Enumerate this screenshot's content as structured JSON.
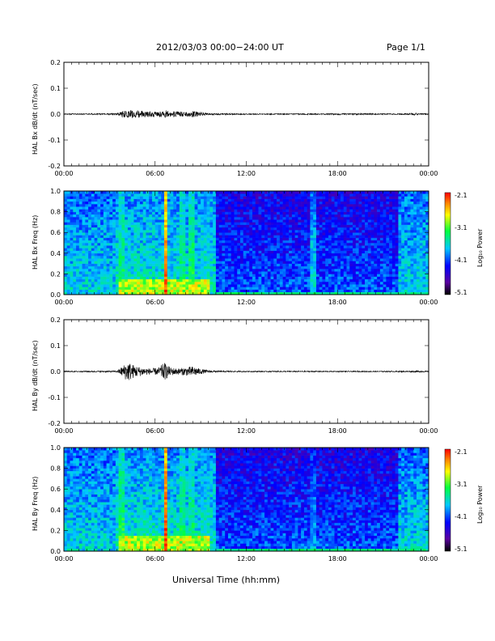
{
  "header": {
    "title": "2012/03/03  00:00−24:00 UT",
    "page": "Page 1/1"
  },
  "footer": {
    "xlabel": "Universal Time (hh:mm)"
  },
  "chart_data": [
    {
      "id": "bx-dbdt",
      "type": "line",
      "ylabel": "HAL Bx dB/dt (nT/sec)",
      "xlim": [
        0,
        24
      ],
      "ylim": [
        -0.2,
        0.2
      ],
      "xticks": [
        "00:00",
        "06:00",
        "12:00",
        "18:00",
        "00:00"
      ],
      "yticks": [
        "-0.2",
        "-0.1",
        "0.0",
        "0.1",
        "0.2"
      ],
      "series": [
        {
          "x": [
            0,
            3.5,
            3.8,
            4.2,
            4.6,
            5.0,
            5.6,
            6.2,
            6.6,
            7.0,
            7.5,
            8.0,
            8.5,
            9.0,
            9.5,
            10,
            12,
            15,
            18,
            22,
            23.2,
            24
          ],
          "amplitude": [
            0.002,
            0.003,
            0.012,
            0.018,
            0.015,
            0.014,
            0.012,
            0.01,
            0.016,
            0.012,
            0.01,
            0.01,
            0.012,
            0.008,
            0.004,
            0.003,
            0.002,
            0.002,
            0.003,
            0.002,
            0.004,
            0.002
          ]
        }
      ]
    },
    {
      "id": "bx-spec",
      "type": "heatmap",
      "ylabel": "HAL Bx Freq (Hz)",
      "xlim": [
        0,
        24
      ],
      "ylim": [
        0,
        1.0
      ],
      "xticks": [
        "00:00",
        "06:00",
        "12:00",
        "18:00",
        "00:00"
      ],
      "yticks": [
        "0.0",
        "0.2",
        "0.4",
        "0.6",
        "0.8",
        "1.0"
      ],
      "colorbar": {
        "label": "Log₁₀ Power",
        "min": -5.1,
        "max": -2.1,
        "ticks": [
          "-2.1",
          "-3.1",
          "-4.1",
          "-5.1"
        ]
      },
      "bands": [
        {
          "t0": 3.6,
          "t1": 4.0,
          "level": -3.3
        },
        {
          "t0": 6.6,
          "t1": 6.8,
          "level": -2.3
        },
        {
          "t0": 7.6,
          "t1": 8.1,
          "level": -3.3
        },
        {
          "t0": 8.2,
          "t1": 8.6,
          "level": -3.2
        },
        {
          "t0": 9.1,
          "t1": 9.5,
          "level": -3.5
        },
        {
          "t0": 16.3,
          "t1": 16.6,
          "level": -3.6
        },
        {
          "t0": 23.2,
          "t1": 23.5,
          "level": -3.6
        }
      ]
    },
    {
      "id": "by-dbdt",
      "type": "line",
      "ylabel": "HAL By dB/dt (nT/sec)",
      "xlim": [
        0,
        24
      ],
      "ylim": [
        -0.2,
        0.2
      ],
      "xticks": [
        "00:00",
        "06:00",
        "12:00",
        "18:00",
        "00:00"
      ],
      "yticks": [
        "-0.2",
        "-0.1",
        "0.0",
        "0.1",
        "0.2"
      ],
      "series": [
        {
          "x": [
            0,
            3.5,
            3.8,
            4.2,
            4.6,
            5.0,
            5.6,
            6.2,
            6.6,
            7.0,
            7.5,
            8.0,
            8.5,
            9.0,
            9.5,
            10,
            12,
            15,
            18,
            22,
            23.2,
            24
          ],
          "amplitude": [
            0.002,
            0.003,
            0.018,
            0.04,
            0.025,
            0.018,
            0.012,
            0.014,
            0.035,
            0.016,
            0.012,
            0.016,
            0.02,
            0.01,
            0.005,
            0.003,
            0.002,
            0.002,
            0.002,
            0.002,
            0.003,
            0.002
          ]
        }
      ]
    },
    {
      "id": "by-spec",
      "type": "heatmap",
      "ylabel": "HAL By Freq (Hz)",
      "xlim": [
        0,
        24
      ],
      "ylim": [
        0,
        1.0
      ],
      "xticks": [
        "00:00",
        "06:00",
        "12:00",
        "18:00",
        "00:00"
      ],
      "yticks": [
        "0.0",
        "0.2",
        "0.4",
        "0.6",
        "0.8",
        "1.0"
      ],
      "colorbar": {
        "label": "Log₁₀ Power",
        "min": -5.1,
        "max": -2.1,
        "ticks": [
          "-2.1",
          "-3.1",
          "-4.1",
          "-5.1"
        ]
      },
      "bands": [
        {
          "t0": 3.6,
          "t1": 4.0,
          "level": -3.2
        },
        {
          "t0": 6.6,
          "t1": 6.8,
          "level": -2.2
        },
        {
          "t0": 7.7,
          "t1": 8.0,
          "level": -3.3
        },
        {
          "t0": 8.2,
          "t1": 8.6,
          "level": -3.3
        },
        {
          "t0": 9.1,
          "t1": 9.5,
          "level": -3.5
        },
        {
          "t0": 16.3,
          "t1": 16.6,
          "level": -3.8
        },
        {
          "t0": 23.2,
          "t1": 23.5,
          "level": -3.6
        }
      ]
    }
  ]
}
